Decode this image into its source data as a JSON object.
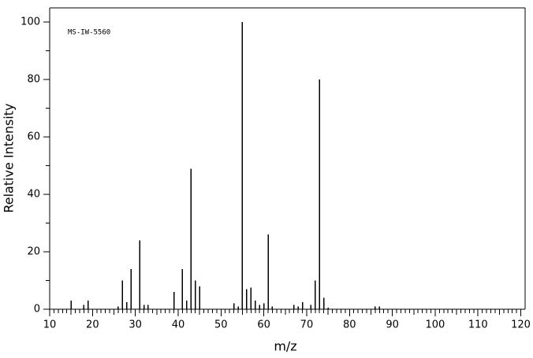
{
  "chart_data": {
    "type": "bar",
    "annotation": "MS-IW-5560",
    "x_label": "m/z",
    "y_label": "Relative Intensity",
    "x": [
      15,
      18,
      19,
      26,
      27,
      28,
      29,
      31,
      32,
      33,
      39,
      41,
      42,
      43,
      44,
      45,
      53,
      54,
      55,
      56,
      57,
      58,
      59,
      60,
      61,
      62,
      67,
      68,
      69,
      71,
      72,
      73,
      74,
      75,
      86,
      87
    ],
    "values": [
      3,
      1.5,
      3,
      1,
      10,
      2.5,
      14,
      24,
      1.5,
      1.5,
      6,
      14,
      3,
      49,
      10,
      8,
      2,
      1,
      100,
      7,
      7.5,
      3,
      1.5,
      2,
      26,
      1,
      1.5,
      1,
      2.5,
      1.5,
      10,
      80,
      4,
      0.5,
      1,
      1
    ],
    "color": "#000000",
    "xlim": [
      10,
      121
    ],
    "ylim": [
      0,
      105
    ],
    "xticks": [
      10,
      20,
      30,
      40,
      50,
      60,
      70,
      80,
      90,
      100,
      110,
      120
    ],
    "yticks": [
      0,
      20,
      40,
      60,
      80,
      100
    ]
  }
}
